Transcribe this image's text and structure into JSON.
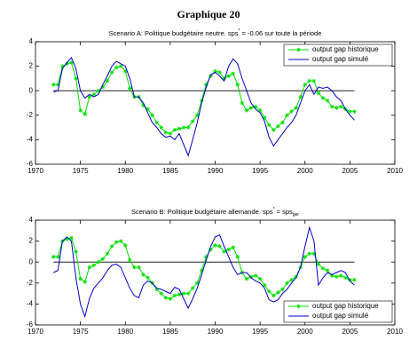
{
  "title": "Graphique 20",
  "chart_data": [
    {
      "type": "line",
      "title_parts": [
        {
          "text": "Scenario A: Politique budgétaire neutre. sps"
        },
        {
          "text": "*",
          "shift": "sup"
        },
        {
          "text": " = -0.06 sur toute la période"
        }
      ],
      "x": [
        1972,
        1972.5,
        1973,
        1973.5,
        1974,
        1974.5,
        1975,
        1975.5,
        1976,
        1976.5,
        1977,
        1977.5,
        1978,
        1978.5,
        1979,
        1979.5,
        1980,
        1980.5,
        1981,
        1981.5,
        1982,
        1982.5,
        1983,
        1983.5,
        1984,
        1984.5,
        1985,
        1985.5,
        1986,
        1986.5,
        1987,
        1987.5,
        1988,
        1988.5,
        1989,
        1989.5,
        1990,
        1990.5,
        1991,
        1991.5,
        1992,
        1992.5,
        1993,
        1993.5,
        1994,
        1994.5,
        1995,
        1995.5,
        1996,
        1996.5,
        1997,
        1997.5,
        1998,
        1998.5,
        1999,
        1999.5,
        2000,
        2000.5,
        2001,
        2001.5,
        2002,
        2002.5,
        2003,
        2003.5,
        2004,
        2004.5,
        2005,
        2005.5
      ],
      "series": [
        {
          "name": "output gap historique",
          "color": "#00e000",
          "marker": "star",
          "values": [
            0.5,
            0.5,
            2.0,
            2.2,
            2.3,
            1.0,
            -1.6,
            -1.9,
            -0.5,
            -0.3,
            0.0,
            0.3,
            0.8,
            1.5,
            1.9,
            2.0,
            1.6,
            0.2,
            -0.5,
            -0.5,
            -1.2,
            -1.5,
            -2.0,
            -2.6,
            -3.0,
            -3.4,
            -3.5,
            -3.2,
            -3.1,
            -3.0,
            -3.0,
            -2.5,
            -2.0,
            -0.8,
            0.5,
            1.2,
            1.6,
            1.5,
            1.0,
            1.2,
            1.4,
            0.5,
            -1.0,
            -1.6,
            -1.4,
            -1.3,
            -1.6,
            -2.2,
            -2.8,
            -3.2,
            -2.9,
            -2.6,
            -2.0,
            -1.7,
            -1.4,
            -0.5,
            0.5,
            0.8,
            0.8,
            -0.2,
            -0.6,
            -0.8,
            -1.3,
            -1.4,
            -1.3,
            -1.5,
            -1.7,
            -1.7
          ]
        },
        {
          "name": "output gap simulé",
          "color": "#0000c8",
          "values": [
            -0.1,
            0.0,
            1.8,
            2.3,
            2.7,
            1.8,
            0.0,
            -0.6,
            -0.3,
            -0.5,
            -0.3,
            0.5,
            1.2,
            2.0,
            2.4,
            2.2,
            2.0,
            1.0,
            -0.5,
            -0.5,
            -1.0,
            -1.8,
            -2.6,
            -3.0,
            -3.5,
            -3.8,
            -3.7,
            -4.0,
            -3.5,
            -4.4,
            -5.3,
            -4.0,
            -2.6,
            -1.0,
            0.3,
            1.3,
            1.5,
            1.2,
            0.8,
            2.0,
            2.6,
            2.2,
            1.0,
            0.0,
            -1.0,
            -1.5,
            -1.8,
            -2.5,
            -3.8,
            -4.5,
            -4.0,
            -3.5,
            -3.0,
            -2.6,
            -2.0,
            -1.0,
            0.0,
            0.5,
            -0.3,
            0.3,
            0.2,
            0.3,
            0.0,
            -0.5,
            -0.8,
            -1.5,
            -2.0,
            -2.4
          ]
        }
      ],
      "xlim": [
        1970,
        2010
      ],
      "xticks": [
        1970,
        1975,
        1980,
        1985,
        1990,
        1995,
        2000,
        2005,
        2010
      ],
      "ylim": [
        -6,
        4
      ],
      "yticks": [
        -6,
        -4,
        -2,
        0,
        2,
        4
      ],
      "hline": 0,
      "legend": "upper right"
    },
    {
      "type": "line",
      "title_parts": [
        {
          "text": "Scenario B: Politique budgétaire allemande. sps"
        },
        {
          "text": "*",
          "shift": "sup"
        },
        {
          "text": " = sps"
        },
        {
          "text": "ger",
          "shift": "sub"
        }
      ],
      "x": [
        1972,
        1972.5,
        1973,
        1973.5,
        1974,
        1974.5,
        1975,
        1975.5,
        1976,
        1976.5,
        1977,
        1977.5,
        1978,
        1978.5,
        1979,
        1979.5,
        1980,
        1980.5,
        1981,
        1981.5,
        1982,
        1982.5,
        1983,
        1983.5,
        1984,
        1984.5,
        1985,
        1985.5,
        1986,
        1986.5,
        1987,
        1987.5,
        1988,
        1988.5,
        1989,
        1989.5,
        1990,
        1990.5,
        1991,
        1991.5,
        1992,
        1992.5,
        1993,
        1993.5,
        1994,
        1994.5,
        1995,
        1995.5,
        1996,
        1996.5,
        1997,
        1997.5,
        1998,
        1998.5,
        1999,
        1999.5,
        2000,
        2000.5,
        2001,
        2001.5,
        2002,
        2002.5,
        2003,
        2003.5,
        2004,
        2004.5,
        2005,
        2005.5
      ],
      "series": [
        {
          "name": "output gap historique",
          "color": "#00e000",
          "marker": "star",
          "values": [
            0.5,
            0.5,
            2.0,
            2.2,
            2.3,
            1.0,
            -1.6,
            -1.9,
            -0.5,
            -0.3,
            0.0,
            0.3,
            0.8,
            1.5,
            1.9,
            2.0,
            1.6,
            0.2,
            -0.5,
            -0.5,
            -1.2,
            -1.5,
            -2.0,
            -2.6,
            -3.0,
            -3.4,
            -3.5,
            -3.2,
            -3.1,
            -3.0,
            -3.0,
            -2.5,
            -2.0,
            -0.8,
            0.5,
            1.2,
            1.6,
            1.5,
            1.0,
            1.2,
            1.4,
            0.5,
            -1.0,
            -1.6,
            -1.4,
            -1.3,
            -1.6,
            -2.2,
            -2.8,
            -3.2,
            -2.9,
            -2.6,
            -2.0,
            -1.7,
            -1.4,
            -0.5,
            0.5,
            0.8,
            0.8,
            -0.2,
            -0.6,
            -0.8,
            -1.3,
            -1.4,
            -1.3,
            -1.5,
            -1.7,
            -1.7
          ]
        },
        {
          "name": "output gap simulé",
          "color": "#0000c8",
          "values": [
            -1.0,
            -0.8,
            2.0,
            2.4,
            2.0,
            -1.5,
            -4.0,
            -5.2,
            -3.5,
            -2.5,
            -2.0,
            -1.5,
            -0.8,
            -0.3,
            -0.2,
            -0.5,
            -1.5,
            -2.5,
            -3.2,
            -3.4,
            -2.2,
            -1.8,
            -2.0,
            -2.5,
            -2.6,
            -2.8,
            -3.0,
            -2.4,
            -2.6,
            -3.5,
            -4.4,
            -3.5,
            -2.5,
            -1.2,
            0.2,
            1.5,
            2.4,
            2.6,
            1.5,
            0.5,
            -0.5,
            -1.2,
            -1.0,
            -1.0,
            -1.5,
            -1.8,
            -2.0,
            -2.5,
            -3.6,
            -3.8,
            -3.6,
            -3.0,
            -2.6,
            -2.0,
            -1.5,
            -0.5,
            1.5,
            3.3,
            2.0,
            -2.2,
            -1.5,
            -1.0,
            -1.2,
            -1.0,
            -0.8,
            -1.0,
            -1.8,
            -2.2
          ]
        }
      ],
      "xlim": [
        1970,
        2010
      ],
      "xticks": [
        1970,
        1975,
        1980,
        1985,
        1990,
        1995,
        2000,
        2005,
        2010
      ],
      "ylim": [
        -6,
        4
      ],
      "yticks": [
        -6,
        -4,
        -2,
        0,
        2,
        4
      ],
      "hline": 0,
      "legend": "lower right"
    }
  ]
}
